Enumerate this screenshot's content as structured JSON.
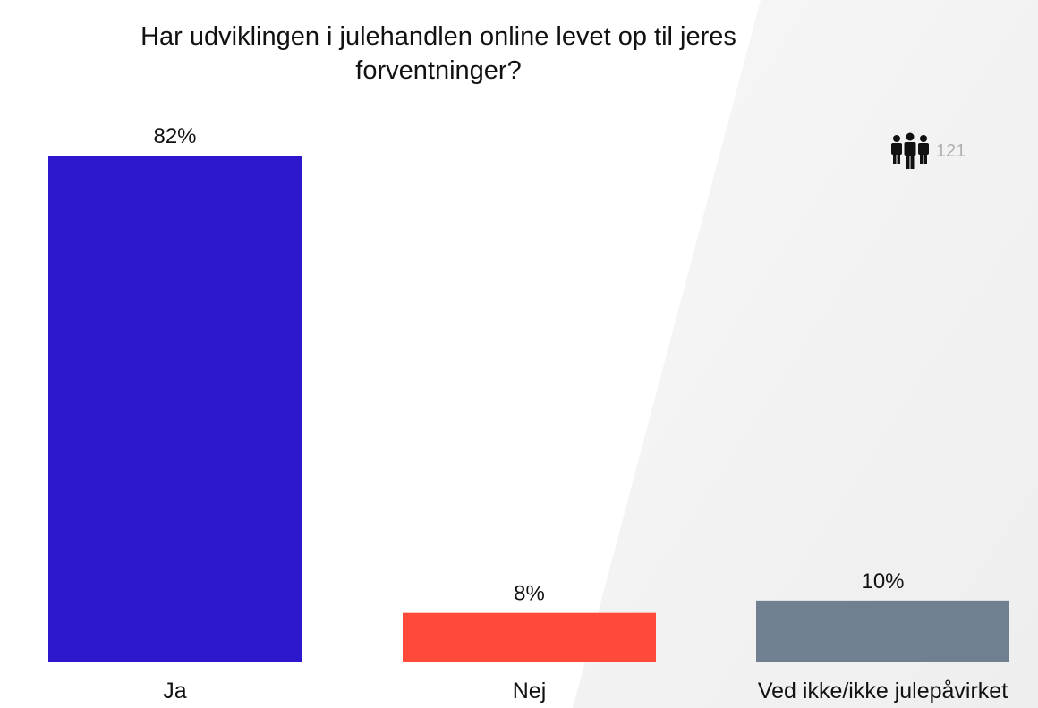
{
  "chart_data": {
    "type": "bar",
    "title": "Har udviklingen i julehandlen online levet op til jeres forventninger?",
    "categories": [
      "Ja",
      "Nej",
      "Ved ikke/ikke julepåvirket"
    ],
    "values": [
      82,
      8,
      10
    ],
    "value_labels": [
      "82%",
      "8%",
      "10%"
    ],
    "colors": [
      "#2d17cc",
      "#ff4a3a",
      "#718090"
    ],
    "ylim": [
      0,
      82
    ],
    "grid": false,
    "legend": "none"
  },
  "respondents": {
    "icon": "people-group-icon",
    "count": "121"
  }
}
